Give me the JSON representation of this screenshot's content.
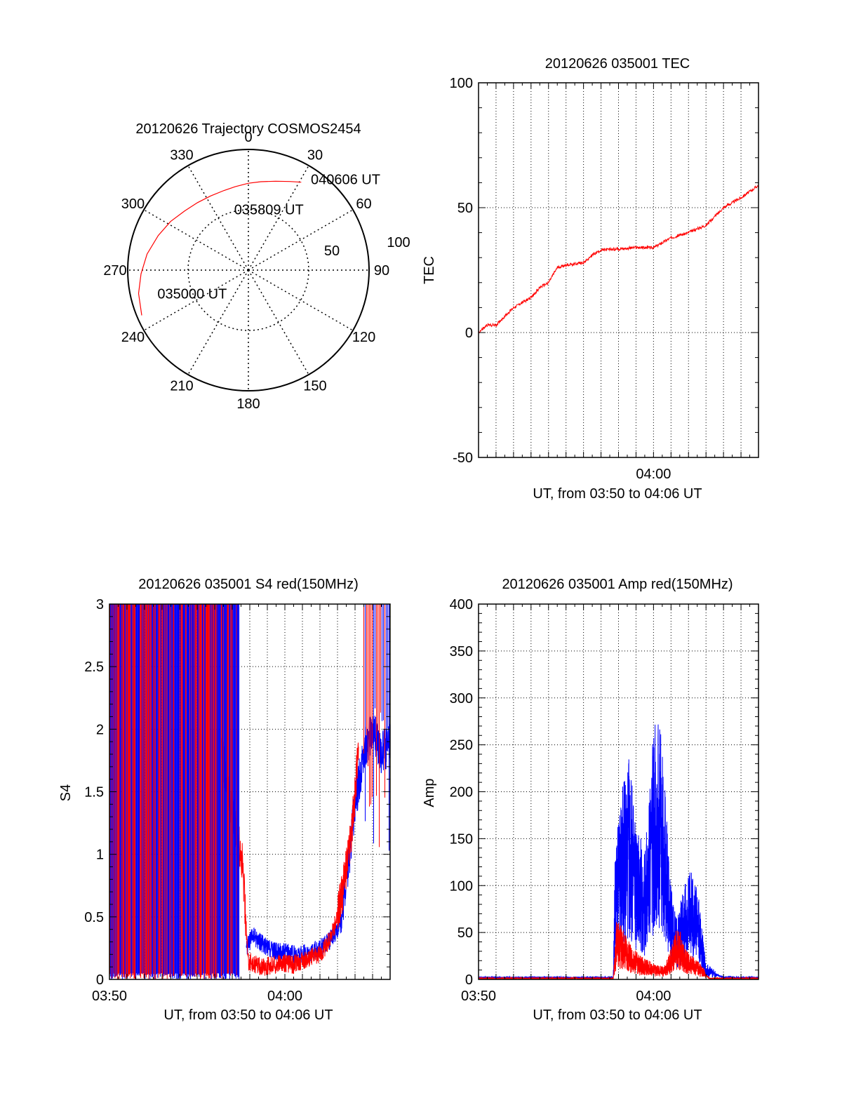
{
  "colors": {
    "red": "#ff0000",
    "blue": "#0000ff",
    "axis": "#000000",
    "grid": "#000000"
  },
  "chart_data": [
    {
      "id": "trajectory",
      "type": "polar",
      "title": "20120626 Trajectory COSMOS2454",
      "azimuth_labels": [
        "0",
        "30",
        "60",
        "90",
        "120",
        "150",
        "180",
        "210",
        "240",
        "270",
        "300",
        "330"
      ],
      "azimuth_values": [
        0,
        30,
        60,
        90,
        120,
        150,
        180,
        210,
        240,
        270,
        300,
        330
      ],
      "radial_labels": [
        "50",
        "100"
      ],
      "radial_values": [
        50,
        100
      ],
      "radial_max": 100,
      "series": [
        {
          "color": "red",
          "points": [
            {
              "az": 247,
              "r": 96
            },
            {
              "az": 258,
              "r": 93
            },
            {
              "az": 268,
              "r": 89
            },
            {
              "az": 279,
              "r": 85
            },
            {
              "az": 291,
              "r": 80
            },
            {
              "az": 302,
              "r": 76
            },
            {
              "az": 313,
              "r": 72
            },
            {
              "az": 323,
              "r": 70
            },
            {
              "az": 333,
              "r": 69
            },
            {
              "az": 343,
              "r": 69
            },
            {
              "az": 351,
              "r": 70
            },
            {
              "az": 0,
              "r": 72
            },
            {
              "az": 8,
              "r": 74
            },
            {
              "az": 17,
              "r": 77
            },
            {
              "az": 25,
              "r": 81
            },
            {
              "az": 31,
              "r": 85
            }
          ]
        }
      ],
      "annotations": [
        {
          "text": "040606 UT",
          "az": 36,
          "r": 93
        },
        {
          "text": "035809 UT",
          "az": 350,
          "r": 51
        },
        {
          "text": "035000 UT",
          "az": 255,
          "r": 75
        }
      ]
    },
    {
      "id": "tec",
      "type": "line",
      "title": "20120626 035001 TEC",
      "xlabel": "UT, from 03:50 to 04:06 UT",
      "ylabel": "TEC",
      "xlim_minutes": [
        0,
        16
      ],
      "ylim": [
        -50,
        100
      ],
      "yticks": [
        "-50",
        "0",
        "50",
        "100"
      ],
      "yticks_values": [
        -50,
        0,
        50,
        100
      ],
      "xticks": [
        {
          "label": "04:00",
          "minute": 10
        }
      ],
      "series": [
        {
          "color": "red",
          "x_minutes": [
            0,
            0.5,
            1,
            2,
            2.5,
            3,
            3.5,
            4,
            4.5,
            5,
            6,
            6.5,
            7,
            8,
            8.5,
            9,
            10,
            11,
            12,
            13,
            13.3,
            14,
            15,
            16
          ],
          "y": [
            0,
            3,
            3,
            10,
            12,
            14,
            18,
            20,
            26,
            27,
            28,
            31,
            33,
            33.5,
            33.8,
            34,
            34,
            38,
            40,
            43,
            45,
            50,
            54,
            59
          ]
        }
      ]
    },
    {
      "id": "s4",
      "type": "line",
      "title": "20120626 035001 S4 red(150MHz)",
      "xlabel": "UT, from 03:50 to 04:06 UT",
      "ylabel": "S4",
      "xlim_minutes": [
        0,
        16
      ],
      "ylim": [
        0,
        3
      ],
      "yticks": [
        "0",
        "0.5",
        "1",
        "1.5",
        "2",
        "2.5",
        "3"
      ],
      "yticks_values": [
        0,
        0.5,
        1,
        1.5,
        2,
        2.5,
        3
      ],
      "xticks": [
        {
          "label": "03:50",
          "minute": 0
        },
        {
          "label": "04:00",
          "minute": 10
        }
      ],
      "series": [
        {
          "color": "blue",
          "x_minutes": [
            7.8,
            8.2,
            8.6,
            9,
            9.5,
            10,
            10.5,
            11,
            11.5,
            12,
            12.5,
            13,
            13.3,
            13.6,
            14,
            14.5,
            15,
            15.5,
            16
          ],
          "y": [
            0.25,
            0.35,
            0.3,
            0.25,
            0.22,
            0.22,
            0.2,
            0.2,
            0.22,
            0.25,
            0.3,
            0.4,
            0.6,
            0.9,
            1.4,
            1.8,
            2.0,
            1.8,
            1.9
          ]
        },
        {
          "color": "red",
          "x_minutes": [
            6.4,
            6.8,
            7.2,
            7.6,
            7.9,
            8.3,
            8.8,
            9.5,
            10,
            10.5,
            11,
            11.5,
            12,
            12.5,
            13,
            13.4,
            13.8,
            14.2
          ],
          "y": [
            1.8,
            1.5,
            1.2,
            0.9,
            0.15,
            0.12,
            0.1,
            0.12,
            0.13,
            0.12,
            0.15,
            0.18,
            0.2,
            0.3,
            0.5,
            0.8,
            1.2,
            1.8
          ]
        }
      ]
    },
    {
      "id": "amp",
      "type": "line",
      "title": "20120626 035001 Amp red(150MHz)",
      "xlabel": "UT, from 03:50 to 04:06 UT",
      "ylabel": "Amp",
      "xlim_minutes": [
        0,
        16
      ],
      "ylim": [
        0,
        400
      ],
      "yticks": [
        "0",
        "50",
        "100",
        "150",
        "200",
        "250",
        "300",
        "350",
        "400"
      ],
      "yticks_values": [
        0,
        50,
        100,
        150,
        200,
        250,
        300,
        350,
        400
      ],
      "xticks": [
        {
          "label": "03:50",
          "minute": 0
        },
        {
          "label": "04:00",
          "minute": 10
        }
      ],
      "series": [
        {
          "color": "blue",
          "x_minutes": [
            0,
            7.7,
            7.8,
            8.2,
            8.6,
            9,
            9.5,
            9.8,
            10,
            10.3,
            10.6,
            11,
            11.3,
            11.8,
            12.2,
            12.6,
            13.0,
            14,
            16
          ],
          "y": [
            2,
            2,
            80,
            120,
            140,
            100,
            80,
            120,
            160,
            170,
            130,
            60,
            40,
            60,
            70,
            50,
            10,
            2,
            2
          ]
        },
        {
          "color": "red",
          "x_minutes": [
            0,
            7.7,
            7.9,
            8.3,
            8.8,
            9.3,
            10,
            10.6,
            11,
            11.4,
            11.8,
            12.2,
            12.7,
            13.2,
            16
          ],
          "y": [
            1,
            1,
            40,
            30,
            20,
            15,
            10,
            8,
            20,
            35,
            20,
            15,
            10,
            1,
            1
          ]
        }
      ]
    }
  ]
}
